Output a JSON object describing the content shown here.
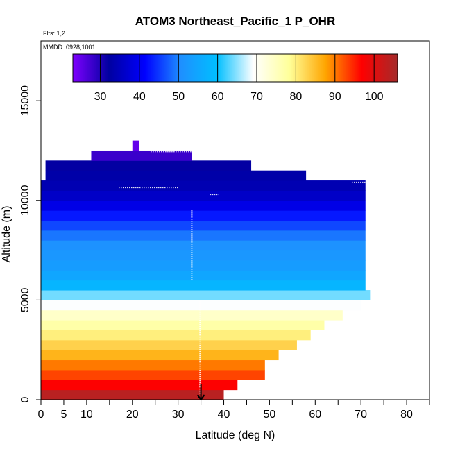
{
  "chart_data": {
    "type": "heatmap",
    "title": "ATOM3 Northeast_Pacific_1 P_OHR",
    "flights_label": "Flts: 1,2",
    "dates_label": "MMDD: 0928,1001",
    "xlabel": "Latitude (deg N)",
    "ylabel": "Altitude (m)",
    "xlim": [
      0,
      85
    ],
    "ylim": [
      0,
      18000
    ],
    "x_ticks": [
      0,
      5,
      10,
      20,
      30,
      40,
      50,
      60,
      70,
      80
    ],
    "x_minor_ticks": [
      15,
      25,
      35,
      45,
      55,
      65,
      75,
      85
    ],
    "y_ticks": [
      0,
      5000,
      10000,
      15000
    ],
    "colorbar": {
      "min": 23,
      "max": 106,
      "ticks": [
        30,
        40,
        50,
        60,
        70,
        80,
        90,
        100
      ],
      "colors": [
        "#7f00ff",
        "#0000a0",
        "#0000ff",
        "#1e90ff",
        "#00bfff",
        "#ffffff",
        "#ffff99",
        "#ffa500",
        "#ff0000",
        "#a52a2a"
      ]
    },
    "layers": [
      {
        "alt_bottom": 0,
        "alt_top": 500,
        "lat_min": 0,
        "lat_max": 40,
        "value": 104
      },
      {
        "alt_bottom": 500,
        "alt_top": 1000,
        "lat_min": 0,
        "lat_max": 43,
        "value": 97
      },
      {
        "alt_bottom": 1000,
        "alt_top": 1500,
        "lat_min": 0,
        "lat_max": 49,
        "value": 93
      },
      {
        "alt_bottom": 1500,
        "alt_top": 2000,
        "lat_min": 0,
        "lat_max": 49,
        "value": 90
      },
      {
        "alt_bottom": 2000,
        "alt_top": 2500,
        "lat_min": 0,
        "lat_max": 52,
        "value": 86
      },
      {
        "alt_bottom": 2500,
        "alt_top": 3000,
        "lat_min": 0,
        "lat_max": 56,
        "value": 83
      },
      {
        "alt_bottom": 3000,
        "alt_top": 3500,
        "lat_min": 0,
        "lat_max": 59,
        "value": 80
      },
      {
        "alt_bottom": 3500,
        "alt_top": 4000,
        "lat_min": 0,
        "lat_max": 62,
        "value": 77
      },
      {
        "alt_bottom": 4000,
        "alt_top": 4500,
        "lat_min": 0,
        "lat_max": 66,
        "value": 74
      },
      {
        "alt_bottom": 4500,
        "alt_top": 5000,
        "lat_min": 0,
        "lat_max": 70,
        "value": 69
      },
      {
        "alt_bottom": 5000,
        "alt_top": 5500,
        "lat_min": 0,
        "lat_max": 72,
        "value": 64
      },
      {
        "alt_bottom": 5500,
        "alt_top": 6000,
        "lat_min": 0,
        "lat_max": 71,
        "value": 58
      },
      {
        "alt_bottom": 6000,
        "alt_top": 6500,
        "lat_min": 0,
        "lat_max": 71,
        "value": 55
      },
      {
        "alt_bottom": 6500,
        "alt_top": 7000,
        "lat_min": 0,
        "lat_max": 71,
        "value": 53
      },
      {
        "alt_bottom": 7000,
        "alt_top": 7500,
        "lat_min": 0,
        "lat_max": 71,
        "value": 52
      },
      {
        "alt_bottom": 7500,
        "alt_top": 8000,
        "lat_min": 0,
        "lat_max": 71,
        "value": 51
      },
      {
        "alt_bottom": 8000,
        "alt_top": 8500,
        "lat_min": 0,
        "lat_max": 71,
        "value": 49
      },
      {
        "alt_bottom": 8500,
        "alt_top": 9000,
        "lat_min": 0,
        "lat_max": 71,
        "value": 46
      },
      {
        "alt_bottom": 9000,
        "alt_top": 9500,
        "lat_min": 0,
        "lat_max": 71,
        "value": 43
      },
      {
        "alt_bottom": 9500,
        "alt_top": 10000,
        "lat_min": 0,
        "lat_max": 71,
        "value": 39
      },
      {
        "alt_bottom": 10000,
        "alt_top": 10500,
        "lat_min": 0,
        "lat_max": 71,
        "value": 36
      },
      {
        "alt_bottom": 10500,
        "alt_top": 11000,
        "lat_min": 0,
        "lat_max": 71,
        "value": 34
      },
      {
        "alt_bottom": 11000,
        "alt_top": 11500,
        "lat_min": 1,
        "lat_max": 58,
        "value": 33
      },
      {
        "alt_bottom": 11500,
        "alt_top": 12000,
        "lat_min": 1,
        "lat_max": 46,
        "value": 32
      },
      {
        "alt_bottom": 12000,
        "alt_top": 12500,
        "lat_min": 11,
        "lat_max": 33,
        "value": 28
      },
      {
        "alt_bottom": 12500,
        "alt_top": 13000,
        "lat_min": 20,
        "lat_max": 21.5,
        "value": 25
      }
    ],
    "flight_tracks": [
      {
        "lat_start": 17,
        "lat_end": 30,
        "alt": 10650
      },
      {
        "lat_start": 24,
        "lat_end": 33,
        "alt": 12450
      },
      {
        "lat_start": 37,
        "lat_end": 39,
        "alt": 10300
      },
      {
        "lat_start": 68,
        "lat_end": 71,
        "alt": 10900
      },
      {
        "lat_start": 34.8,
        "lat_end": 34.8,
        "alt_bottom": 300,
        "alt_top": 5000
      },
      {
        "lat_start": 33,
        "lat_end": 33,
        "alt_bottom": 6000,
        "alt_top": 9500
      }
    ],
    "arrow": {
      "lat": 35,
      "alt_top": 800,
      "alt_bottom": 0
    }
  }
}
